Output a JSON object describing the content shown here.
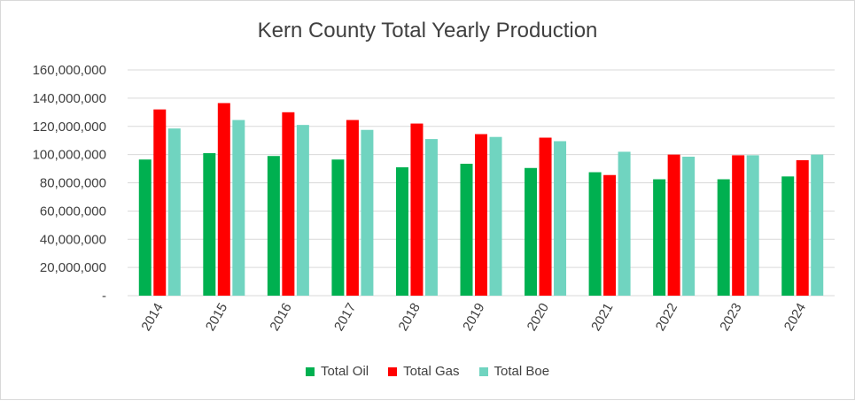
{
  "chart_data": {
    "type": "bar",
    "title": "Kern County Total Yearly Production",
    "xlabel": "",
    "ylabel": "",
    "ylim": [
      0,
      160000000
    ],
    "yticks": [
      "-",
      "20,000,000",
      "40,000,000",
      "60,000,000",
      "80,000,000",
      "100,000,000",
      "120,000,000",
      "140,000,000",
      "160,000,000"
    ],
    "ytick_values": [
      0,
      20000000,
      40000000,
      60000000,
      80000000,
      100000000,
      120000000,
      140000000,
      160000000
    ],
    "grid": true,
    "legend_position": "bottom",
    "categories": [
      "2014",
      "2015",
      "2016",
      "2017",
      "2018",
      "2019",
      "2020",
      "2021",
      "2022",
      "2023",
      "2024"
    ],
    "series": [
      {
        "name": "Total Oil",
        "color": "#00b050",
        "values": [
          96500000,
          101000000,
          99000000,
          96500000,
          91000000,
          93500000,
          90500000,
          87500000,
          82500000,
          82500000,
          84500000
        ]
      },
      {
        "name": "Total Gas",
        "color": "#ff0000",
        "values": [
          132000000,
          136500000,
          130000000,
          124500000,
          122000000,
          114500000,
          112000000,
          85500000,
          100000000,
          99500000,
          96000000
        ]
      },
      {
        "name": "Total Boe",
        "color": "#70d4c0",
        "values": [
          118500000,
          124500000,
          121000000,
          117500000,
          111000000,
          112500000,
          109500000,
          102000000,
          98500000,
          99500000,
          100000000
        ]
      }
    ]
  }
}
